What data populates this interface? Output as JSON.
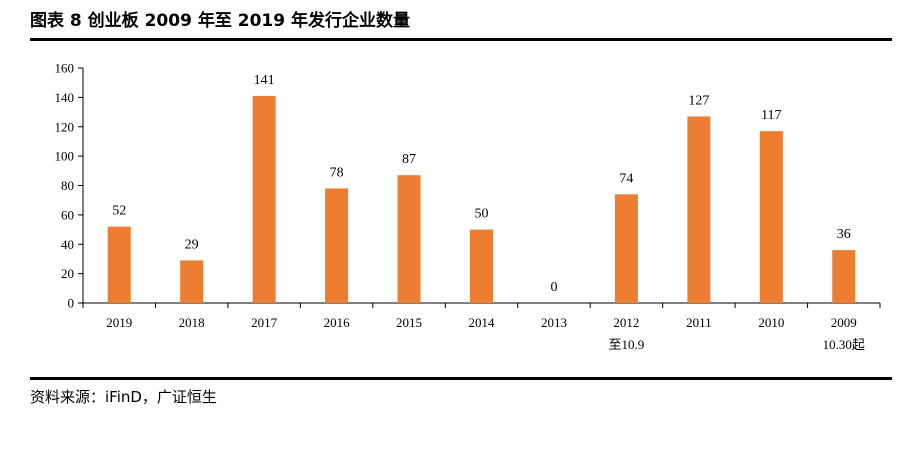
{
  "header": {
    "title": "图表 8 创业板 2009 年至 2019 年发行企业数量"
  },
  "footer": {
    "source": "资料来源：iFinD，广证恒生"
  },
  "chart_data": {
    "type": "bar",
    "categories": [
      [
        "2019"
      ],
      [
        "2018"
      ],
      [
        "2017"
      ],
      [
        "2016"
      ],
      [
        "2015"
      ],
      [
        "2014"
      ],
      [
        "2013"
      ],
      [
        "2012",
        "至10.9"
      ],
      [
        "2011"
      ],
      [
        "2010"
      ],
      [
        "2009",
        "10.30起"
      ]
    ],
    "values": [
      52,
      29,
      141,
      78,
      87,
      50,
      0,
      74,
      127,
      117,
      36
    ],
    "data_labels": [
      "52",
      "29",
      "141",
      "78",
      "87",
      "50",
      "0",
      "74",
      "127",
      "117",
      "36"
    ],
    "ylim": [
      0,
      160
    ],
    "yticks": [
      0,
      20,
      40,
      60,
      80,
      100,
      120,
      140,
      160
    ],
    "bar_color": "#ED7D31",
    "grid": false,
    "legend": "none"
  }
}
